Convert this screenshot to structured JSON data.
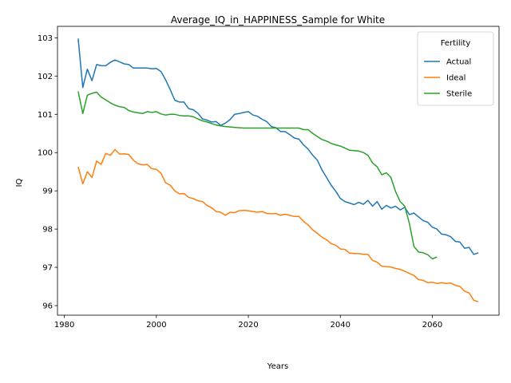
{
  "chart_data": {
    "type": "line",
    "title": "Average_IQ_in_HAPPINESS_Sample for White",
    "xlabel": "Years",
    "ylabel": "IQ",
    "xlim": [
      1978.5,
      2074.5
    ],
    "ylim": [
      95.75,
      103.3
    ],
    "xticks": [
      1980,
      2000,
      2020,
      2040,
      2060
    ],
    "yticks": [
      96,
      97,
      98,
      99,
      100,
      101,
      102,
      103
    ],
    "grid": false,
    "legend": {
      "title": "Fertility",
      "placement": "top-right"
    },
    "series": [
      {
        "name": "Actual",
        "color": "#1f77b4",
        "x": [
          1983,
          1984,
          1985,
          1986,
          1987,
          1988,
          1989,
          1990,
          1991,
          1992,
          1993,
          1994,
          1995,
          1996,
          1997,
          1998,
          1999,
          2000,
          2001,
          2002,
          2003,
          2004,
          2005,
          2006,
          2007,
          2008,
          2009,
          2010,
          2011,
          2012,
          2013,
          2014,
          2015,
          2016,
          2017,
          2018,
          2019,
          2020,
          2021,
          2022,
          2023,
          2024,
          2025,
          2026,
          2027,
          2028,
          2029,
          2030,
          2031,
          2032,
          2033,
          2034,
          2035,
          2036,
          2037,
          2038,
          2039,
          2040,
          2041,
          2042,
          2043,
          2044,
          2045,
          2046,
          2047,
          2048,
          2049,
          2050,
          2051,
          2052,
          2053,
          2054,
          2055,
          2056,
          2057,
          2058,
          2059,
          2060,
          2061,
          2062,
          2063,
          2064,
          2065,
          2066,
          2067,
          2068,
          2069,
          2070
        ],
        "y": [
          102.98,
          101.7,
          102.18,
          101.88,
          102.3,
          102.27,
          102.27,
          102.36,
          102.42,
          102.37,
          102.32,
          102.3,
          102.21,
          102.21,
          102.21,
          102.21,
          102.19,
          102.2,
          102.12,
          101.9,
          101.65,
          101.37,
          101.32,
          101.32,
          101.15,
          101.12,
          101.03,
          100.88,
          100.85,
          100.8,
          100.81,
          100.71,
          100.77,
          100.86,
          101.0,
          101.02,
          101.05,
          101.07,
          100.98,
          100.95,
          100.87,
          100.81,
          100.68,
          100.65,
          100.55,
          100.55,
          100.47,
          100.38,
          100.35,
          100.2,
          100.09,
          99.93,
          99.8,
          99.55,
          99.35,
          99.15,
          98.99,
          98.8,
          98.72,
          98.68,
          98.64,
          98.7,
          98.65,
          98.75,
          98.6,
          98.72,
          98.52,
          98.62,
          98.55,
          98.6,
          98.5,
          98.57,
          98.38,
          98.42,
          98.32,
          98.22,
          98.18,
          98.05,
          98.0,
          97.87,
          97.85,
          97.8,
          97.68,
          97.66,
          97.5,
          97.52,
          97.34,
          97.38
        ]
      },
      {
        "name": "Ideal",
        "color": "#ff7f0e",
        "x": [
          1983,
          1984,
          1985,
          1986,
          1987,
          1988,
          1989,
          1990,
          1991,
          1992,
          1993,
          1994,
          1995,
          1996,
          1997,
          1998,
          1999,
          2000,
          2001,
          2002,
          2003,
          2004,
          2005,
          2006,
          2007,
          2008,
          2009,
          2010,
          2011,
          2012,
          2013,
          2014,
          2015,
          2016,
          2017,
          2018,
          2019,
          2020,
          2021,
          2022,
          2023,
          2024,
          2025,
          2026,
          2027,
          2028,
          2029,
          2030,
          2031,
          2032,
          2033,
          2034,
          2035,
          2036,
          2037,
          2038,
          2039,
          2040,
          2041,
          2042,
          2043,
          2044,
          2045,
          2046,
          2047,
          2048,
          2049,
          2050,
          2051,
          2052,
          2053,
          2054,
          2055,
          2056,
          2057,
          2058,
          2059,
          2060,
          2061,
          2062,
          2063,
          2064,
          2065,
          2066,
          2067,
          2068,
          2069,
          2070
        ],
        "y": [
          99.63,
          99.18,
          99.5,
          99.35,
          99.78,
          99.69,
          99.98,
          99.93,
          100.08,
          99.96,
          99.97,
          99.95,
          99.8,
          99.71,
          99.68,
          99.69,
          99.58,
          99.56,
          99.46,
          99.21,
          99.15,
          99.0,
          98.92,
          98.93,
          98.83,
          98.8,
          98.74,
          98.72,
          98.62,
          98.56,
          98.46,
          98.44,
          98.36,
          98.44,
          98.43,
          98.48,
          98.49,
          98.48,
          98.46,
          98.44,
          98.46,
          98.41,
          98.4,
          98.41,
          98.36,
          98.39,
          98.36,
          98.33,
          98.33,
          98.2,
          98.11,
          97.98,
          97.89,
          97.79,
          97.72,
          97.62,
          97.58,
          97.48,
          97.47,
          97.37,
          97.36,
          97.36,
          97.34,
          97.34,
          97.18,
          97.14,
          97.03,
          97.02,
          97.01,
          96.97,
          96.95,
          96.9,
          96.84,
          96.79,
          96.68,
          96.66,
          96.6,
          96.61,
          96.58,
          96.6,
          96.58,
          96.59,
          96.53,
          96.5,
          96.38,
          96.33,
          96.14,
          96.1
        ]
      },
      {
        "name": "Sterile",
        "color": "#2ca02c",
        "x": [
          1983,
          1984,
          1985,
          1986,
          1987,
          1988,
          1989,
          1990,
          1991,
          1992,
          1993,
          1994,
          1995,
          1996,
          1997,
          1998,
          1999,
          2000,
          2001,
          2002,
          2003,
          2004,
          2005,
          2006,
          2007,
          2008,
          2009,
          2010,
          2011,
          2012,
          2013,
          2014,
          2015,
          2016,
          2017,
          2018,
          2019,
          2020,
          2021,
          2022,
          2023,
          2024,
          2025,
          2026,
          2027,
          2028,
          2029,
          2030,
          2031,
          2032,
          2033,
          2034,
          2035,
          2036,
          2037,
          2038,
          2039,
          2040,
          2041,
          2042,
          2043,
          2044,
          2045,
          2046,
          2047,
          2048,
          2049,
          2050,
          2051,
          2052,
          2053,
          2054,
          2055,
          2056,
          2057,
          2058,
          2059,
          2060,
          2061
        ],
        "y": [
          101.6,
          101.02,
          101.5,
          101.55,
          101.58,
          101.45,
          101.38,
          101.3,
          101.24,
          101.2,
          101.18,
          101.1,
          101.06,
          101.04,
          101.02,
          101.07,
          101.05,
          101.07,
          101.01,
          100.98,
          101.0,
          101.0,
          100.97,
          100.96,
          100.96,
          100.94,
          100.88,
          100.83,
          100.8,
          100.76,
          100.72,
          100.7,
          100.68,
          100.67,
          100.66,
          100.65,
          100.64,
          100.64,
          100.64,
          100.64,
          100.64,
          100.64,
          100.64,
          100.64,
          100.64,
          100.64,
          100.64,
          100.64,
          100.64,
          100.6,
          100.6,
          100.5,
          100.42,
          100.34,
          100.3,
          100.24,
          100.2,
          100.17,
          100.12,
          100.06,
          100.05,
          100.04,
          100.0,
          99.93,
          99.73,
          99.63,
          99.42,
          99.47,
          99.35,
          98.98,
          98.72,
          98.6,
          98.15,
          97.55,
          97.4,
          97.38,
          97.33,
          97.22,
          97.27
        ]
      }
    ]
  }
}
